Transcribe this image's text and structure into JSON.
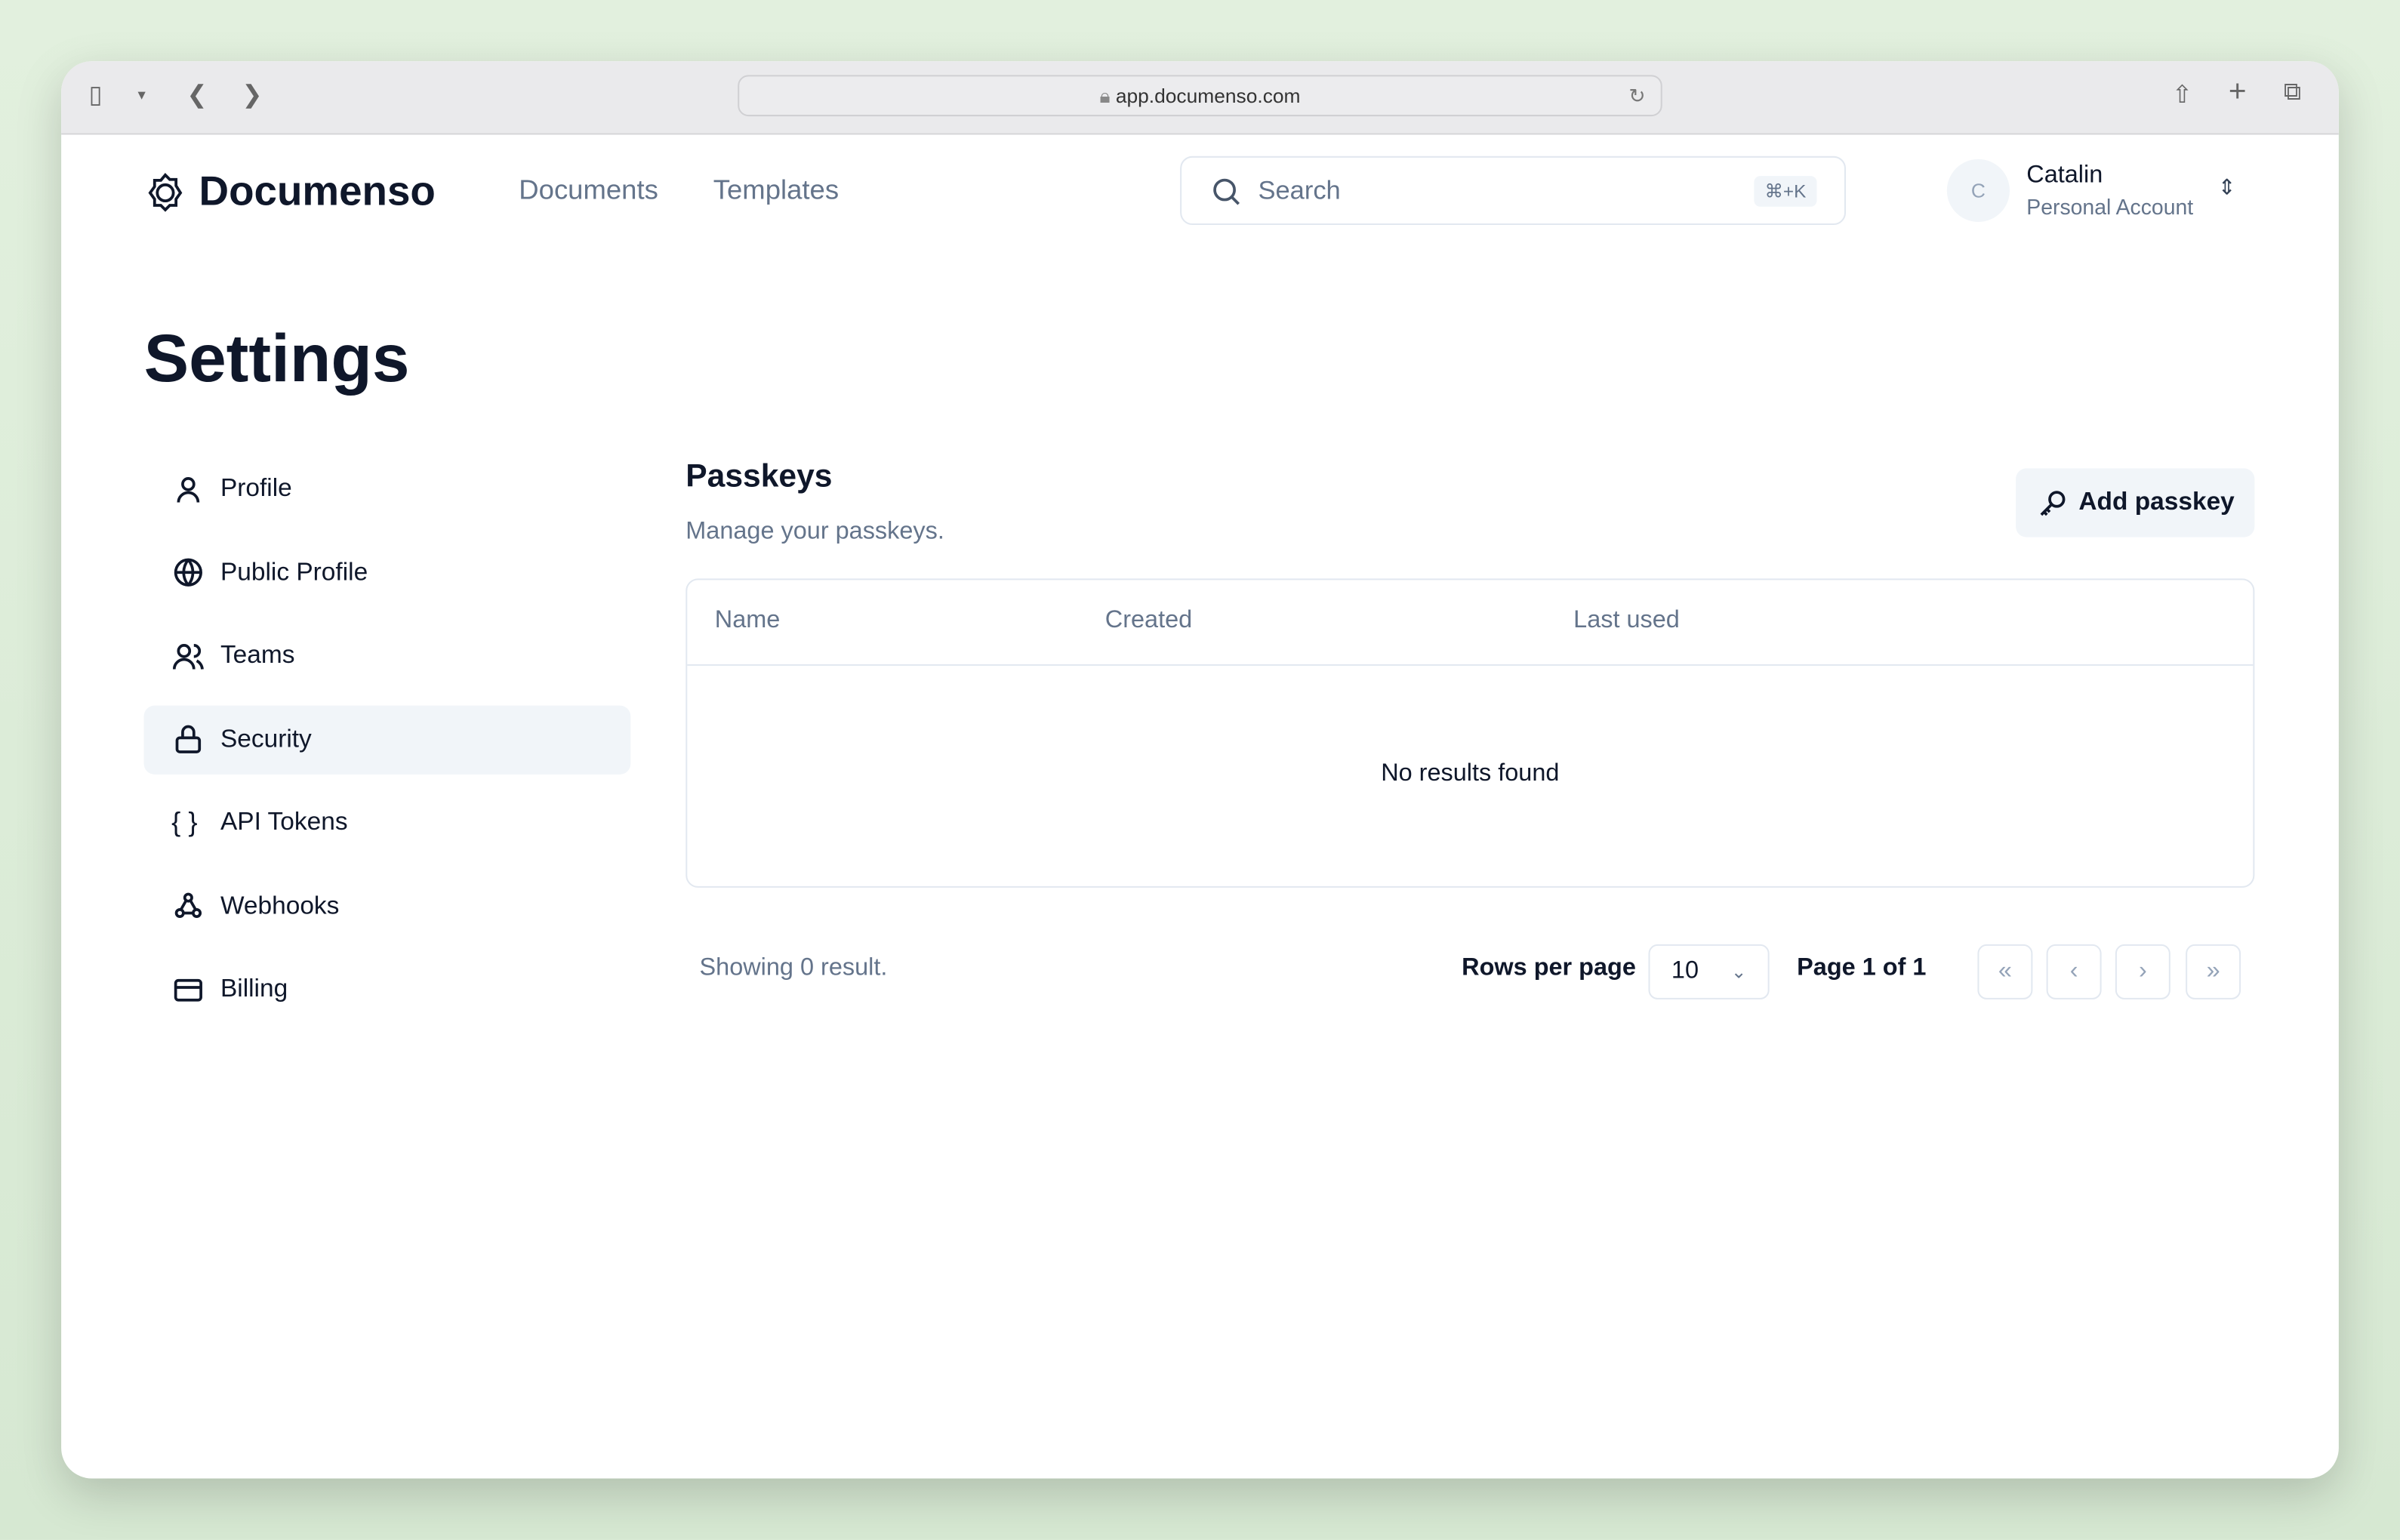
{
  "browser": {
    "url": "app.documenso.com"
  },
  "header": {
    "brand": "Documenso",
    "nav": [
      "Documents",
      "Templates"
    ],
    "search_placeholder": "Search",
    "search_shortcut": "⌘+K",
    "user": {
      "initial": "C",
      "name": "Catalin",
      "account": "Personal Account"
    }
  },
  "page": {
    "title": "Settings"
  },
  "sidebar": {
    "items": [
      {
        "label": "Profile",
        "icon": "user-icon"
      },
      {
        "label": "Public Profile",
        "icon": "globe-icon"
      },
      {
        "label": "Teams",
        "icon": "users-icon"
      },
      {
        "label": "Security",
        "icon": "lock-icon",
        "active": true
      },
      {
        "label": "API Tokens",
        "icon": "braces-icon"
      },
      {
        "label": "Webhooks",
        "icon": "webhook-icon"
      },
      {
        "label": "Billing",
        "icon": "credit-card-icon"
      }
    ]
  },
  "passkeys": {
    "title": "Passkeys",
    "description": "Manage your passkeys.",
    "add_label": "Add passkey",
    "columns": [
      "Name",
      "Created",
      "Last used"
    ],
    "empty": "No results found"
  },
  "pagination": {
    "showing": "Showing 0 result.",
    "rows_label": "Rows per page",
    "rows_value": "10",
    "page_label": "Page 1 of 1"
  }
}
